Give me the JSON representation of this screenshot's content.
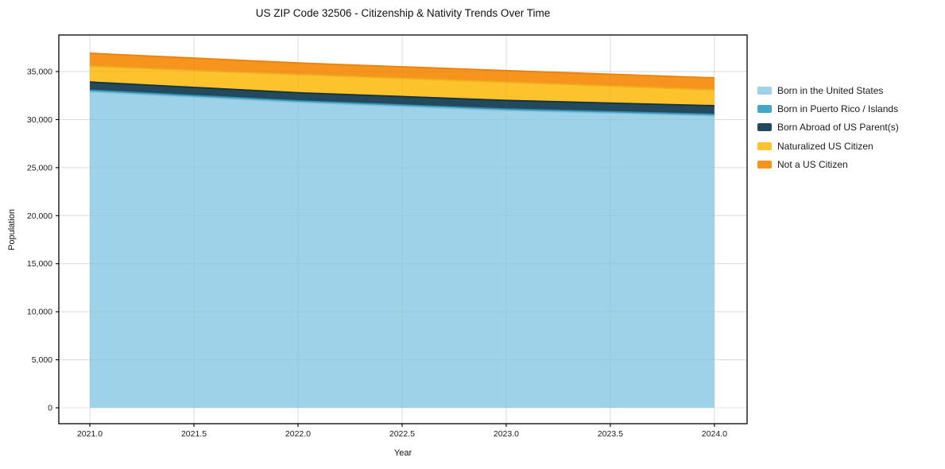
{
  "chart_data": {
    "type": "area",
    "title": "US ZIP Code 32506 - Citizenship & Nativity Trends Over Time",
    "xlabel": "Year",
    "ylabel": "Population",
    "x": [
      2021,
      2022,
      2023,
      2024
    ],
    "series": [
      {
        "name": "Born in the United States",
        "color": "#9ED2E8",
        "edge_color": "#7FBEDC",
        "values": [
          32900,
          31800,
          30950,
          30400
        ]
      },
      {
        "name": "Born in Puerto Rico / Islands",
        "color": "#45A6C6",
        "edge_color": "#3391B2",
        "values": [
          160,
          150,
          150,
          140
        ]
      },
      {
        "name": "Born Abroad of US Parent(s)",
        "color": "#23495C",
        "edge_color": "#16323F",
        "values": [
          850,
          850,
          900,
          910
        ]
      },
      {
        "name": "Naturalized US Citizen",
        "color": "#FCC32D",
        "edge_color": "#EDAF1B",
        "values": [
          1650,
          1900,
          1900,
          1650
        ]
      },
      {
        "name": "Not a US Citizen",
        "color": "#F7941E",
        "edge_color": "#E8830E",
        "values": [
          1350,
          1200,
          1200,
          1250
        ]
      }
    ],
    "stacked": true,
    "xticks": [
      2021.0,
      2021.5,
      2022.0,
      2022.5,
      2023.0,
      2023.5,
      2024.0
    ],
    "xtick_labels": [
      "2021.0",
      "2021.5",
      "2022.0",
      "2022.5",
      "2023.0",
      "2023.5",
      "2024.0"
    ],
    "yticks": [
      0,
      5000,
      10000,
      15000,
      20000,
      25000,
      30000,
      35000
    ],
    "ytick_labels": [
      "0",
      "5,000",
      "10,000",
      "15,000",
      "20,000",
      "25,000",
      "30,000",
      "35,000"
    ],
    "xlim": [
      2020.851,
      2024.157
    ],
    "ylim": [
      -1655,
      38810
    ],
    "grid": true,
    "grid_color": "#e6e6e6",
    "spine_color": "#000000",
    "legend_position": "right-outside"
  }
}
